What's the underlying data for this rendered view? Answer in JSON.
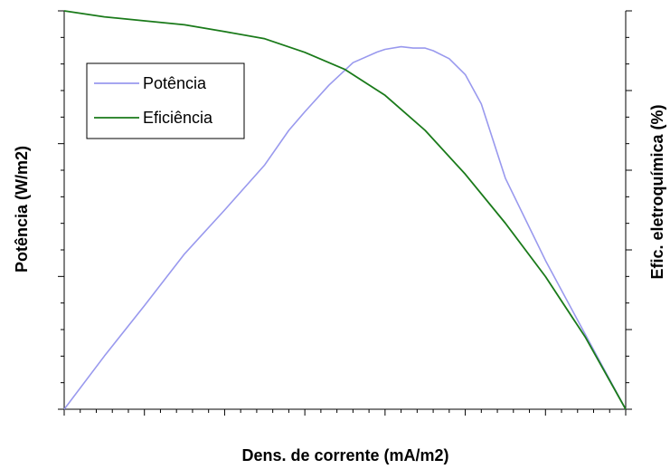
{
  "chart_data": {
    "type": "line",
    "title": "",
    "xlabel": "Dens. de corrente (mA/m2)",
    "ylabel_left": "Potência  (W/m2)",
    "ylabel_right": "Efic. eletroquímica (%)",
    "xlim": [
      0,
      7
    ],
    "ylim_left": [
      0,
      3
    ],
    "ylim_right": [
      0,
      1
    ],
    "grid": false,
    "tick_labels_shown": false,
    "legend_position": "top-left",
    "series": [
      {
        "name": "Potência",
        "axis": "left",
        "color": "#9999ee",
        "x": [
          0,
          0.5,
          1,
          1.5,
          2,
          2.5,
          2.8,
          3.0,
          3.3,
          3.6,
          3.9,
          4.0,
          4.2,
          4.35,
          4.5,
          4.6,
          4.8,
          5.0,
          5.2,
          5.5,
          6.0,
          6.5,
          7.0
        ],
        "y": [
          0,
          0.4,
          0.78,
          1.17,
          1.5,
          1.84,
          2.1,
          2.24,
          2.44,
          2.61,
          2.69,
          2.71,
          2.73,
          2.72,
          2.72,
          2.7,
          2.64,
          2.52,
          2.3,
          1.74,
          1.12,
          0.56,
          0
        ]
      },
      {
        "name": "Eficiência",
        "axis": "right",
        "color": "#1a7a1a",
        "x": [
          0,
          0.5,
          1,
          1.5,
          2,
          2.5,
          3,
          3.5,
          4,
          4.5,
          5,
          5.5,
          6,
          6.5,
          7
        ],
        "y": [
          1.0,
          0.985,
          0.975,
          0.965,
          0.948,
          0.93,
          0.896,
          0.853,
          0.788,
          0.7,
          0.59,
          0.467,
          0.333,
          0.18,
          0.0
        ]
      }
    ]
  }
}
